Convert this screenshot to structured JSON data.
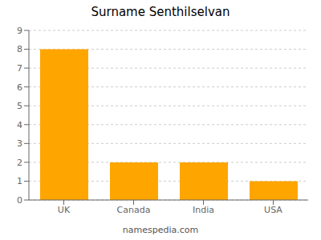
{
  "chart_data": {
    "type": "bar",
    "title": "Surname Senthilselvan",
    "categories": [
      "UK",
      "Canada",
      "India",
      "USA"
    ],
    "values": [
      8,
      2,
      2,
      1
    ],
    "color": "#FFA500",
    "ylim": [
      0,
      9
    ],
    "yticks": [
      0,
      1,
      2,
      3,
      4,
      5,
      6,
      7,
      8,
      9
    ],
    "grid": true,
    "annotations": [
      "namespedia.com"
    ]
  }
}
